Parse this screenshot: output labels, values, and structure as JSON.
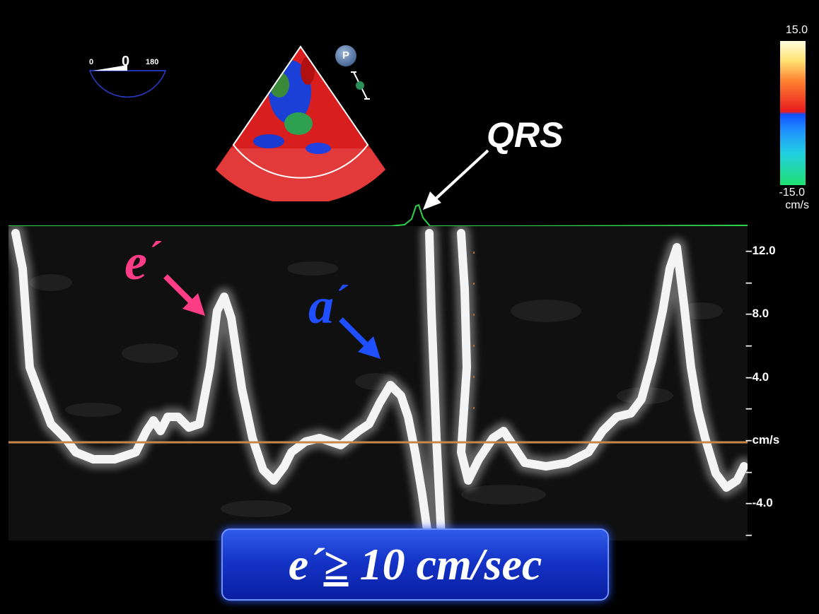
{
  "angle_indicator": {
    "min_label": "0",
    "value": "0",
    "max_label": "180"
  },
  "colorbar": {
    "max_label": "15.0",
    "min_label": "-15.0",
    "unit": "cm/s",
    "colors": [
      "#ffffe0",
      "#ff8030",
      "#e82020",
      "#1050ff",
      "#20d0e0",
      "#20e070"
    ]
  },
  "p_button": {
    "label": "P"
  },
  "ecg": {
    "annotation": "QRS",
    "color": "#2fd34a"
  },
  "waveform_annotations": {
    "e_prime": {
      "letter": "e",
      "prime": "´",
      "color": "#ff3c86"
    },
    "a_prime": {
      "letter": "a",
      "prime": "´",
      "color": "#1f4fff"
    }
  },
  "velocity_axis": {
    "ticks": [
      {
        "label": "12.0",
        "prefix": "–"
      },
      {
        "label": "8.0",
        "prefix": "–"
      },
      {
        "label": "4.0",
        "prefix": "–"
      },
      {
        "label": "cm/s",
        "prefix": "–"
      },
      {
        "label": "-4.0",
        "prefix": "–"
      }
    ],
    "baseline_color": "#c8874a"
  },
  "criteria_banner": {
    "e_letter": "e",
    "prime": "´",
    "operator": "≥",
    "value_text": " 10 cm/sec"
  }
}
